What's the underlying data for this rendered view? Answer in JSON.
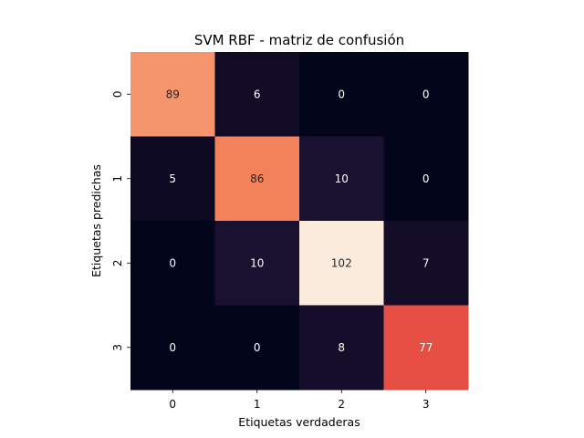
{
  "chart_data": {
    "type": "heatmap",
    "title": "SVM RBF - matriz de confusión",
    "xlabel": "Etiquetas verdaderas",
    "ylabel": "Etiquetas predichas",
    "x_categories": [
      "0",
      "1",
      "2",
      "3"
    ],
    "y_categories": [
      "0",
      "1",
      "2",
      "3"
    ],
    "values": [
      [
        89,
        6,
        0,
        0
      ],
      [
        5,
        86,
        10,
        0
      ],
      [
        0,
        10,
        102,
        7
      ],
      [
        0,
        0,
        8,
        77
      ]
    ],
    "colorscale": "rocket",
    "vmin": 0,
    "vmax": 102,
    "annotations": true,
    "colorbar": false
  },
  "colors": {
    "text_dark": "#262626",
    "text_light": "#ffffff"
  }
}
